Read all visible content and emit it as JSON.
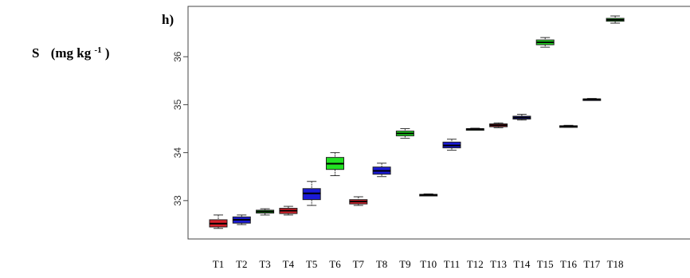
{
  "chart_data": {
    "type": "box",
    "panel_label": "h)",
    "ylabel_main": "S",
    "ylabel_unit": "(mg kg",
    "ylabel_exp": "-1",
    "ylabel_close": ")",
    "ylim": [
      32.2,
      37.05
    ],
    "yticks": [
      "33",
      "34",
      "35",
      "36"
    ],
    "categories": [
      "T1",
      "T2",
      "T3",
      "T4",
      "T5",
      "T6",
      "T7",
      "T8",
      "T9",
      "T10",
      "T11",
      "T12",
      "T13",
      "T14",
      "T15",
      "T16",
      "T17",
      "T18"
    ],
    "colors": {
      "red": "#d8202a",
      "blue": "#1a1ad6",
      "green": "#22e022",
      "axis": "#444444"
    },
    "boxes": [
      {
        "cat": "T1",
        "color": "red",
        "min": 32.42,
        "q1": 32.45,
        "median": 32.52,
        "q3": 32.6,
        "max": 32.7
      },
      {
        "cat": "T2",
        "color": "blue",
        "min": 32.5,
        "q1": 32.53,
        "median": 32.6,
        "q3": 32.66,
        "max": 32.7
      },
      {
        "cat": "T3",
        "color": "green",
        "min": 32.7,
        "q1": 32.74,
        "median": 32.77,
        "q3": 32.8,
        "max": 32.83
      },
      {
        "cat": "T4",
        "color": "red",
        "min": 32.7,
        "q1": 32.73,
        "median": 32.79,
        "q3": 32.84,
        "max": 32.88
      },
      {
        "cat": "T5",
        "color": "blue",
        "min": 32.9,
        "q1": 33.02,
        "median": 33.15,
        "q3": 33.25,
        "max": 33.4
      },
      {
        "cat": "T6",
        "color": "green",
        "min": 33.52,
        "q1": 33.65,
        "median": 33.77,
        "q3": 33.9,
        "max": 34.0
      },
      {
        "cat": "T7",
        "color": "red",
        "min": 32.9,
        "q1": 32.93,
        "median": 32.98,
        "q3": 33.02,
        "max": 33.08
      },
      {
        "cat": "T8",
        "color": "blue",
        "min": 33.5,
        "q1": 33.55,
        "median": 33.62,
        "q3": 33.7,
        "max": 33.78
      },
      {
        "cat": "T9",
        "color": "green",
        "min": 34.3,
        "q1": 34.35,
        "median": 34.4,
        "q3": 34.45,
        "max": 34.5
      },
      {
        "cat": "T10",
        "color": "red",
        "min": 33.1,
        "q1": 33.11,
        "median": 33.12,
        "q3": 33.13,
        "max": 33.14
      },
      {
        "cat": "T11",
        "color": "blue",
        "min": 34.05,
        "q1": 34.1,
        "median": 34.15,
        "q3": 34.22,
        "max": 34.28
      },
      {
        "cat": "T12",
        "color": "green",
        "min": 34.47,
        "q1": 34.48,
        "median": 34.49,
        "q3": 34.5,
        "max": 34.51
      },
      {
        "cat": "T13",
        "color": "red",
        "min": 34.52,
        "q1": 34.54,
        "median": 34.57,
        "q3": 34.6,
        "max": 34.62
      },
      {
        "cat": "T14",
        "color": "blue",
        "min": 34.68,
        "q1": 34.7,
        "median": 34.73,
        "q3": 34.76,
        "max": 34.8
      },
      {
        "cat": "T15",
        "color": "green",
        "min": 36.2,
        "q1": 36.25,
        "median": 36.3,
        "q3": 36.35,
        "max": 36.4
      },
      {
        "cat": "T16",
        "color": "red",
        "min": 34.53,
        "q1": 34.54,
        "median": 34.55,
        "q3": 34.56,
        "max": 34.57
      },
      {
        "cat": "T17",
        "color": "blue",
        "min": 35.09,
        "q1": 35.1,
        "median": 35.11,
        "q3": 35.12,
        "max": 35.13
      },
      {
        "cat": "T18",
        "color": "green",
        "min": 36.7,
        "q1": 36.74,
        "median": 36.77,
        "q3": 36.8,
        "max": 36.85
      }
    ]
  }
}
